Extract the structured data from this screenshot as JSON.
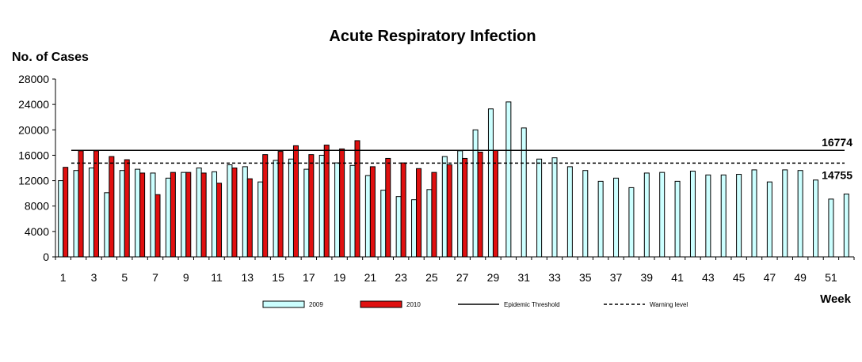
{
  "chart_data": {
    "type": "bar",
    "title": "Acute Respiratory Infection",
    "ylabel": "No. of Cases",
    "xlabel": "Week",
    "ylim": [
      0,
      28000
    ],
    "yticks": [
      0,
      4000,
      8000,
      12000,
      16000,
      20000,
      24000,
      28000
    ],
    "x": [
      1,
      2,
      3,
      4,
      5,
      6,
      7,
      8,
      9,
      10,
      11,
      12,
      13,
      14,
      15,
      16,
      17,
      18,
      19,
      20,
      21,
      22,
      23,
      24,
      25,
      26,
      27,
      28,
      29,
      30,
      31,
      32,
      33,
      34,
      35,
      36,
      37,
      38,
      39,
      40,
      41,
      42,
      43,
      44,
      45,
      46,
      47,
      48,
      49,
      50,
      51,
      52
    ],
    "xtick_labels": [
      "1",
      "3",
      "5",
      "7",
      "9",
      "11",
      "13",
      "15",
      "17",
      "19",
      "21",
      "23",
      "25",
      "27",
      "29",
      "31",
      "33",
      "35",
      "37",
      "39",
      "41",
      "43",
      "45",
      "47",
      "49",
      "51"
    ],
    "grid": false,
    "legend_position": "bottom",
    "series": [
      {
        "name": "2009",
        "color": "#ccffff",
        "values": [
          12000,
          13600,
          14000,
          10100,
          13600,
          13800,
          13200,
          12400,
          13300,
          14000,
          13400,
          14500,
          14200,
          11800,
          15200,
          15400,
          13800,
          16000,
          14800,
          14400,
          12800,
          10500,
          9500,
          9000,
          10600,
          15800,
          16700,
          20000,
          23300,
          24400,
          20300,
          15400,
          15600,
          14200,
          13600,
          11900,
          12400,
          10900,
          13200,
          13300,
          11900,
          13500,
          12900,
          12900,
          13000,
          13700,
          11800,
          13700,
          13600,
          12100,
          9100,
          9900
        ]
      },
      {
        "name": "2010",
        "color": "#e01010",
        "values": [
          14100,
          16700,
          16700,
          15800,
          15300,
          13200,
          9800,
          13300,
          13300,
          13200,
          11600,
          14000,
          12300,
          16100,
          16600,
          17500,
          16100,
          17600,
          17000,
          18300,
          14200,
          15500,
          14800,
          13900,
          13300,
          14500,
          15500,
          16500,
          16800,
          null,
          null,
          null,
          null,
          null,
          null,
          null,
          null,
          null,
          null,
          null,
          null,
          null,
          null,
          null,
          null,
          null,
          null,
          null,
          null,
          null,
          null,
          null
        ]
      }
    ],
    "reference_lines": [
      {
        "name": "Epidemic Threshold",
        "value": 16774,
        "label": "16774",
        "style": "solid"
      },
      {
        "name": "Warning level",
        "value": 14755,
        "label": "14755",
        "style": "dashed"
      }
    ]
  }
}
